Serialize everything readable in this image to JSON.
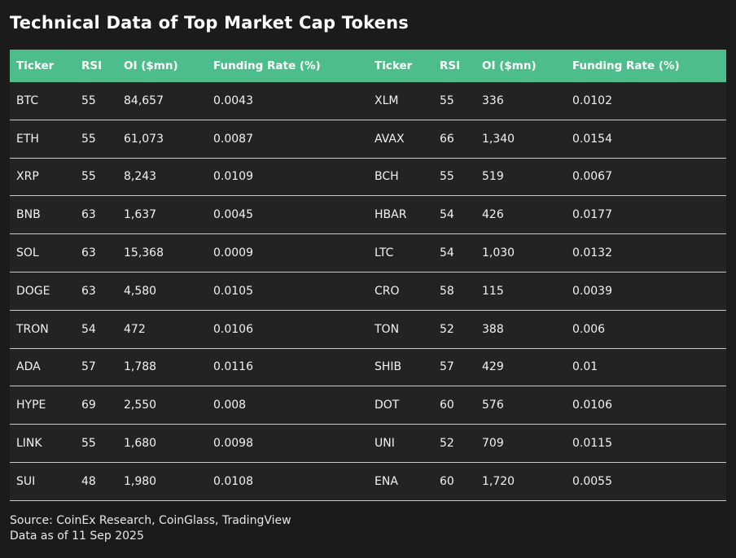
{
  "title": "Technical Data of Top Market Cap Tokens",
  "chart_data": {
    "type": "table",
    "title": "Technical Data of Top Market Cap Tokens",
    "layout": "two column groups side by side, each with identical headers",
    "columns": [
      "Ticker",
      "RSI",
      "OI ($mn)",
      "Funding Rate (%)",
      "Ticker",
      "RSI",
      "OI ($mn)",
      "Funding Rate (%)"
    ],
    "rows": [
      [
        "BTC",
        "55",
        "84,657",
        "0.0043",
        "XLM",
        "55",
        "336",
        "0.0102"
      ],
      [
        "ETH",
        "55",
        "61,073",
        "0.0087",
        "AVAX",
        "66",
        "1,340",
        "0.0154"
      ],
      [
        "XRP",
        "55",
        "8,243",
        "0.0109",
        "BCH",
        "55",
        "519",
        "0.0067"
      ],
      [
        "BNB",
        "63",
        "1,637",
        "0.0045",
        "HBAR",
        "54",
        "426",
        "0.0177"
      ],
      [
        "SOL",
        "63",
        "15,368",
        "0.0009",
        "LTC",
        "54",
        "1,030",
        "0.0132"
      ],
      [
        "DOGE",
        "63",
        "4,580",
        "0.0105",
        "CRO",
        "58",
        "115",
        "0.0039"
      ],
      [
        "TRON",
        "54",
        "472",
        "0.0106",
        "TON",
        "52",
        "388",
        "0.006"
      ],
      [
        "ADA",
        "57",
        "1,788",
        "0.0116",
        "SHIB",
        "57",
        "429",
        "0.01"
      ],
      [
        "HYPE",
        "69",
        "2,550",
        "0.008",
        "DOT",
        "60",
        "576",
        "0.0106"
      ],
      [
        "LINK",
        "55",
        "1,680",
        "0.0098",
        "UNI",
        "52",
        "709",
        "0.0115"
      ],
      [
        "SUI",
        "48",
        "1,980",
        "0.0108",
        "ENA",
        "60",
        "1,720",
        "0.0055"
      ]
    ]
  },
  "footer": {
    "source": "Source: CoinEx Research, CoinGlass, TradingView",
    "as_of": "Data as of 11 Sep 2025"
  },
  "colors": {
    "page_bg": "#1b1b1b",
    "row_bg": "#232323",
    "header_bg": "#4dbd8c",
    "divider": "#c9c9c9",
    "text": "#f2f2f2"
  }
}
